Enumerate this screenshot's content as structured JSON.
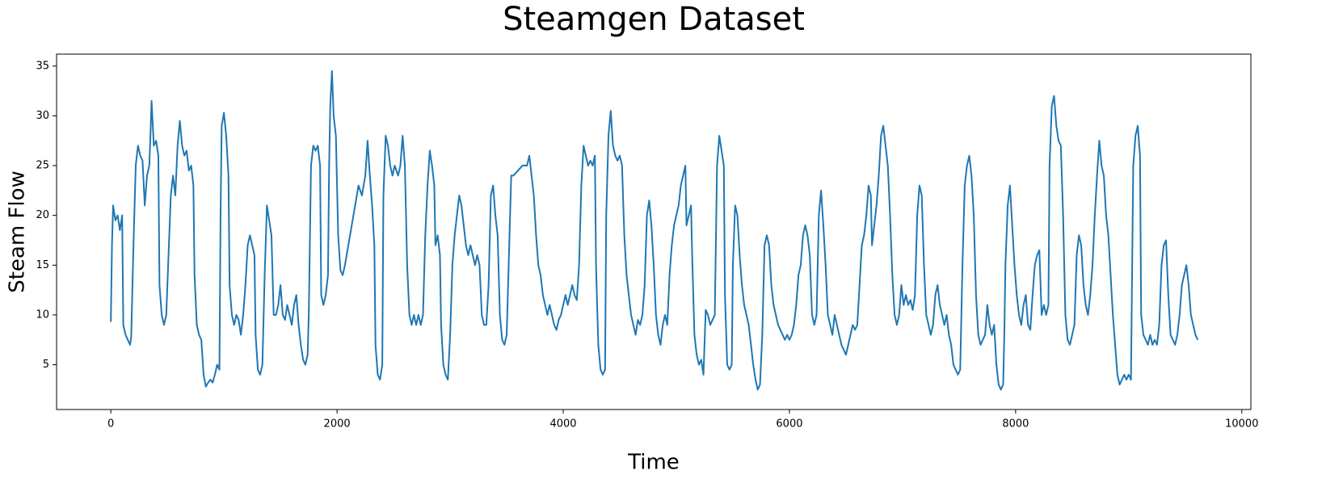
{
  "chart_data": {
    "type": "line",
    "title": "Steamgen Dataset",
    "xlabel": "Time",
    "ylabel": "Steam Flow",
    "color": "#1f77b4",
    "grid": false,
    "xlim": [
      -480,
      10080
    ],
    "ylim": [
      0.5,
      36.2
    ],
    "xticks": [
      0,
      2000,
      4000,
      6000,
      8000,
      10000
    ],
    "yticks": [
      5,
      10,
      15,
      20,
      25,
      30,
      35
    ],
    "x": [
      0,
      10,
      20,
      40,
      60,
      80,
      100,
      110,
      130,
      150,
      170,
      180,
      200,
      220,
      240,
      260,
      280,
      300,
      320,
      340,
      350,
      360,
      380,
      400,
      420,
      430,
      450,
      470,
      490,
      510,
      530,
      550,
      570,
      590,
      610,
      630,
      650,
      670,
      690,
      710,
      730,
      740,
      760,
      780,
      800,
      820,
      840,
      860,
      880,
      900,
      920,
      940,
      960,
      970,
      980,
      1000,
      1020,
      1040,
      1050,
      1070,
      1090,
      1110,
      1130,
      1150,
      1170,
      1190,
      1210,
      1230,
      1250,
      1270,
      1280,
      1300,
      1320,
      1340,
      1360,
      1380,
      1400,
      1420,
      1440,
      1460,
      1480,
      1500,
      1520,
      1540,
      1560,
      1580,
      1600,
      1620,
      1640,
      1660,
      1680,
      1700,
      1720,
      1740,
      1750,
      1770,
      1790,
      1810,
      1830,
      1850,
      1860,
      1880,
      1900,
      1920,
      1930,
      1940,
      1955,
      1970,
      1990,
      2010,
      2030,
      2050,
      2070,
      2100,
      2130,
      2160,
      2190,
      2220,
      2250,
      2270,
      2290,
      2310,
      2330,
      2340,
      2360,
      2380,
      2400,
      2410,
      2430,
      2450,
      2470,
      2490,
      2510,
      2540,
      2560,
      2580,
      2600,
      2620,
      2640,
      2660,
      2680,
      2700,
      2720,
      2740,
      2760,
      2780,
      2800,
      2820,
      2840,
      2860,
      2870,
      2890,
      2910,
      2920,
      2940,
      2960,
      2980,
      3000,
      3020,
      3040,
      3060,
      3080,
      3100,
      3120,
      3140,
      3160,
      3180,
      3200,
      3220,
      3240,
      3260,
      3280,
      3300,
      3320,
      3340,
      3360,
      3380,
      3400,
      3420,
      3440,
      3460,
      3480,
      3500,
      3520,
      3540,
      3560,
      3600,
      3640,
      3680,
      3700,
      3720,
      3740,
      3760,
      3780,
      3800,
      3820,
      3840,
      3860,
      3880,
      3900,
      3920,
      3940,
      3960,
      3980,
      4000,
      4020,
      4040,
      4060,
      4080,
      4100,
      4120,
      4140,
      4160,
      4180,
      4200,
      4220,
      4240,
      4260,
      4280,
      4290,
      4310,
      4330,
      4350,
      4370,
      4380,
      4400,
      4420,
      4440,
      4460,
      4480,
      4500,
      4520,
      4540,
      4560,
      4580,
      4600,
      4620,
      4640,
      4660,
      4680,
      4700,
      4720,
      4740,
      4760,
      4780,
      4800,
      4820,
      4840,
      4860,
      4880,
      4900,
      4920,
      4940,
      4960,
      4980,
      5000,
      5020,
      5040,
      5060,
      5080,
      5090,
      5110,
      5130,
      5140,
      5160,
      5180,
      5200,
      5220,
      5240,
      5260,
      5280,
      5300,
      5320,
      5340,
      5360,
      5380,
      5400,
      5420,
      5430,
      5450,
      5470,
      5490,
      5500,
      5520,
      5540,
      5560,
      5580,
      5600,
      5620,
      5640,
      5660,
      5680,
      5700,
      5720,
      5740,
      5760,
      5780,
      5800,
      5820,
      5840,
      5860,
      5880,
      5900,
      5920,
      5940,
      5960,
      5980,
      6000,
      6020,
      6040,
      6060,
      6080,
      6100,
      6120,
      6140,
      6160,
      6180,
      6200,
      6220,
      6240,
      6260,
      6280,
      6300,
      6320,
      6340,
      6360,
      6380,
      6400,
      6420,
      6440,
      6460,
      6480,
      6500,
      6520,
      6540,
      6560,
      6580,
      6600,
      6620,
      6640,
      6660,
      6680,
      6700,
      6720,
      6730,
      6750,
      6770,
      6790,
      6810,
      6830,
      6850,
      6870,
      6890,
      6910,
      6930,
      6950,
      6970,
      6990,
      7010,
      7030,
      7050,
      7070,
      7090,
      7110,
      7130,
      7150,
      7170,
      7190,
      7210,
      7230,
      7250,
      7270,
      7290,
      7310,
      7330,
      7350,
      7370,
      7390,
      7410,
      7430,
      7450,
      7470,
      7490,
      7510,
      7530,
      7550,
      7570,
      7590,
      7610,
      7630,
      7650,
      7670,
      7690,
      7710,
      7730,
      7750,
      7770,
      7790,
      7810,
      7830,
      7850,
      7870,
      7890,
      7900,
      7910,
      7930,
      7950,
      7970,
      7990,
      8010,
      8030,
      8050,
      8070,
      8090,
      8110,
      8130,
      8150,
      8170,
      8190,
      8210,
      8230,
      8250,
      8270,
      8290,
      8300,
      8320,
      8340,
      8360,
      8380,
      8400,
      8420,
      8440,
      8460,
      8480,
      8500,
      8520,
      8540,
      8560,
      8580,
      8600,
      8620,
      8640,
      8660,
      8680,
      8700,
      8720,
      8740,
      8760,
      8780,
      8800,
      8820,
      8840,
      8860,
      8880,
      8900,
      8920,
      8940,
      8960,
      8980,
      9000,
      9020,
      9040,
      9060,
      9080,
      9100,
      9110,
      9130,
      9150,
      9170,
      9190,
      9210,
      9230,
      9250,
      9270,
      9290,
      9310,
      9330,
      9350,
      9370,
      9390,
      9410,
      9430,
      9450,
      9470,
      9490,
      9510,
      9530,
      9550,
      9570,
      9590,
      9610
    ],
    "values": [
      9.3,
      17,
      21,
      19.5,
      20,
      18.5,
      20,
      9,
      8,
      7.5,
      7,
      7.8,
      17,
      25,
      27,
      26,
      25.5,
      21,
      24,
      25,
      28,
      31.5,
      27,
      27.5,
      26,
      13,
      10,
      9,
      10,
      16,
      22,
      24,
      22,
      27,
      29.5,
      27,
      26,
      26.5,
      24.5,
      25,
      23,
      14,
      9,
      8,
      7.5,
      4,
      2.8,
      3.2,
      3.5,
      3.2,
      4,
      5,
      4.5,
      20,
      29,
      30.3,
      28,
      24,
      13,
      10,
      9,
      10,
      9.5,
      8,
      10,
      13,
      17,
      18,
      17,
      16,
      8,
      4.5,
      4,
      5,
      14,
      21,
      19.5,
      18,
      10,
      10,
      11,
      13,
      10,
      9.5,
      11,
      10,
      9,
      11,
      12,
      9,
      7,
      5.5,
      5,
      6,
      10,
      25,
      27,
      26.5,
      27,
      25,
      12,
      11,
      12,
      14,
      25,
      31,
      34.5,
      30,
      28,
      18,
      14.5,
      14,
      15,
      17,
      19,
      21,
      23,
      22,
      24,
      27.5,
      24,
      21,
      17,
      7,
      4,
      3.5,
      5,
      22,
      28,
      27,
      25,
      24,
      25,
      24,
      25,
      28,
      25,
      15,
      10,
      9,
      10,
      9,
      10,
      9,
      10,
      18,
      23,
      26.5,
      25,
      23,
      17,
      18,
      16,
      9,
      5,
      4,
      3.5,
      8,
      15,
      18,
      20,
      22,
      21,
      19,
      17,
      16,
      17,
      16,
      15,
      16,
      15,
      10,
      9,
      9,
      13,
      22,
      23,
      20,
      18,
      10,
      7.5,
      7,
      8,
      16,
      24,
      24,
      24.5,
      25,
      25,
      26,
      24,
      22,
      18,
      15,
      14,
      12,
      11,
      10,
      11,
      10,
      9,
      8.5,
      9.5,
      10,
      11,
      12,
      11,
      12,
      13,
      12,
      11.5,
      15,
      23,
      27,
      26,
      25,
      25.5,
      25,
      26,
      15,
      7,
      4.5,
      4,
      4.5,
      20,
      28,
      30.5,
      27,
      26,
      25.5,
      26,
      25,
      18,
      14,
      12,
      10,
      9,
      8,
      9.5,
      9,
      10,
      13,
      20,
      21.5,
      19,
      15,
      10,
      8,
      7,
      9,
      10,
      9,
      14,
      17,
      19,
      20,
      21,
      23,
      24,
      25,
      19,
      20,
      21,
      16,
      8,
      6,
      5,
      5.5,
      4,
      10.5,
      10,
      9,
      9.5,
      10,
      25,
      28,
      26.5,
      25,
      12,
      5,
      4.5,
      5,
      15,
      21,
      20,
      16,
      13,
      11,
      10,
      9,
      7,
      5,
      3.5,
      2.5,
      3,
      8,
      17,
      18,
      17,
      13,
      11,
      10,
      9,
      8.5,
      8,
      7.5,
      8,
      7.5,
      8,
      9,
      11,
      14,
      15,
      18,
      19,
      18,
      16,
      10,
      9,
      10,
      20,
      22.5,
      19,
      15,
      10,
      9,
      8,
      10,
      9,
      8,
      7,
      6.5,
      6,
      7,
      8,
      9,
      8.5,
      9,
      13,
      17,
      18,
      20,
      23,
      22,
      17,
      19,
      21,
      24,
      28,
      29,
      27,
      25,
      20,
      14,
      10,
      9,
      10,
      13,
      11,
      12,
      11,
      11.5,
      10.5,
      12,
      20,
      23,
      22,
      15,
      10,
      9,
      8,
      9,
      12,
      13,
      11,
      10,
      9,
      10,
      8,
      7,
      5,
      4.5,
      4,
      4.5,
      15,
      23,
      25,
      26,
      24,
      20,
      12,
      8,
      7,
      7.5,
      8,
      11,
      9,
      8,
      9,
      5,
      3,
      2.5,
      3,
      8,
      15,
      21,
      23,
      19,
      15,
      12,
      10,
      9,
      11,
      12,
      9,
      8.5,
      12,
      15,
      16,
      16.5,
      10,
      11,
      10,
      11,
      25,
      31,
      32,
      29,
      27.5,
      27,
      20,
      10,
      7.5,
      7,
      8,
      9,
      16,
      18,
      17,
      13,
      11,
      10,
      12,
      15,
      20,
      24,
      27.5,
      25,
      24,
      20,
      18,
      14,
      10,
      7,
      4,
      3,
      3.5,
      4,
      3.5,
      4,
      3.5,
      25,
      28,
      29,
      26,
      10,
      8,
      7.5,
      7,
      8,
      7,
      7.5,
      7,
      9,
      15,
      17,
      17.5,
      12,
      8,
      7.5,
      7,
      8,
      10,
      13,
      14,
      15,
      13,
      10,
      9,
      8,
      7.5
    ]
  }
}
